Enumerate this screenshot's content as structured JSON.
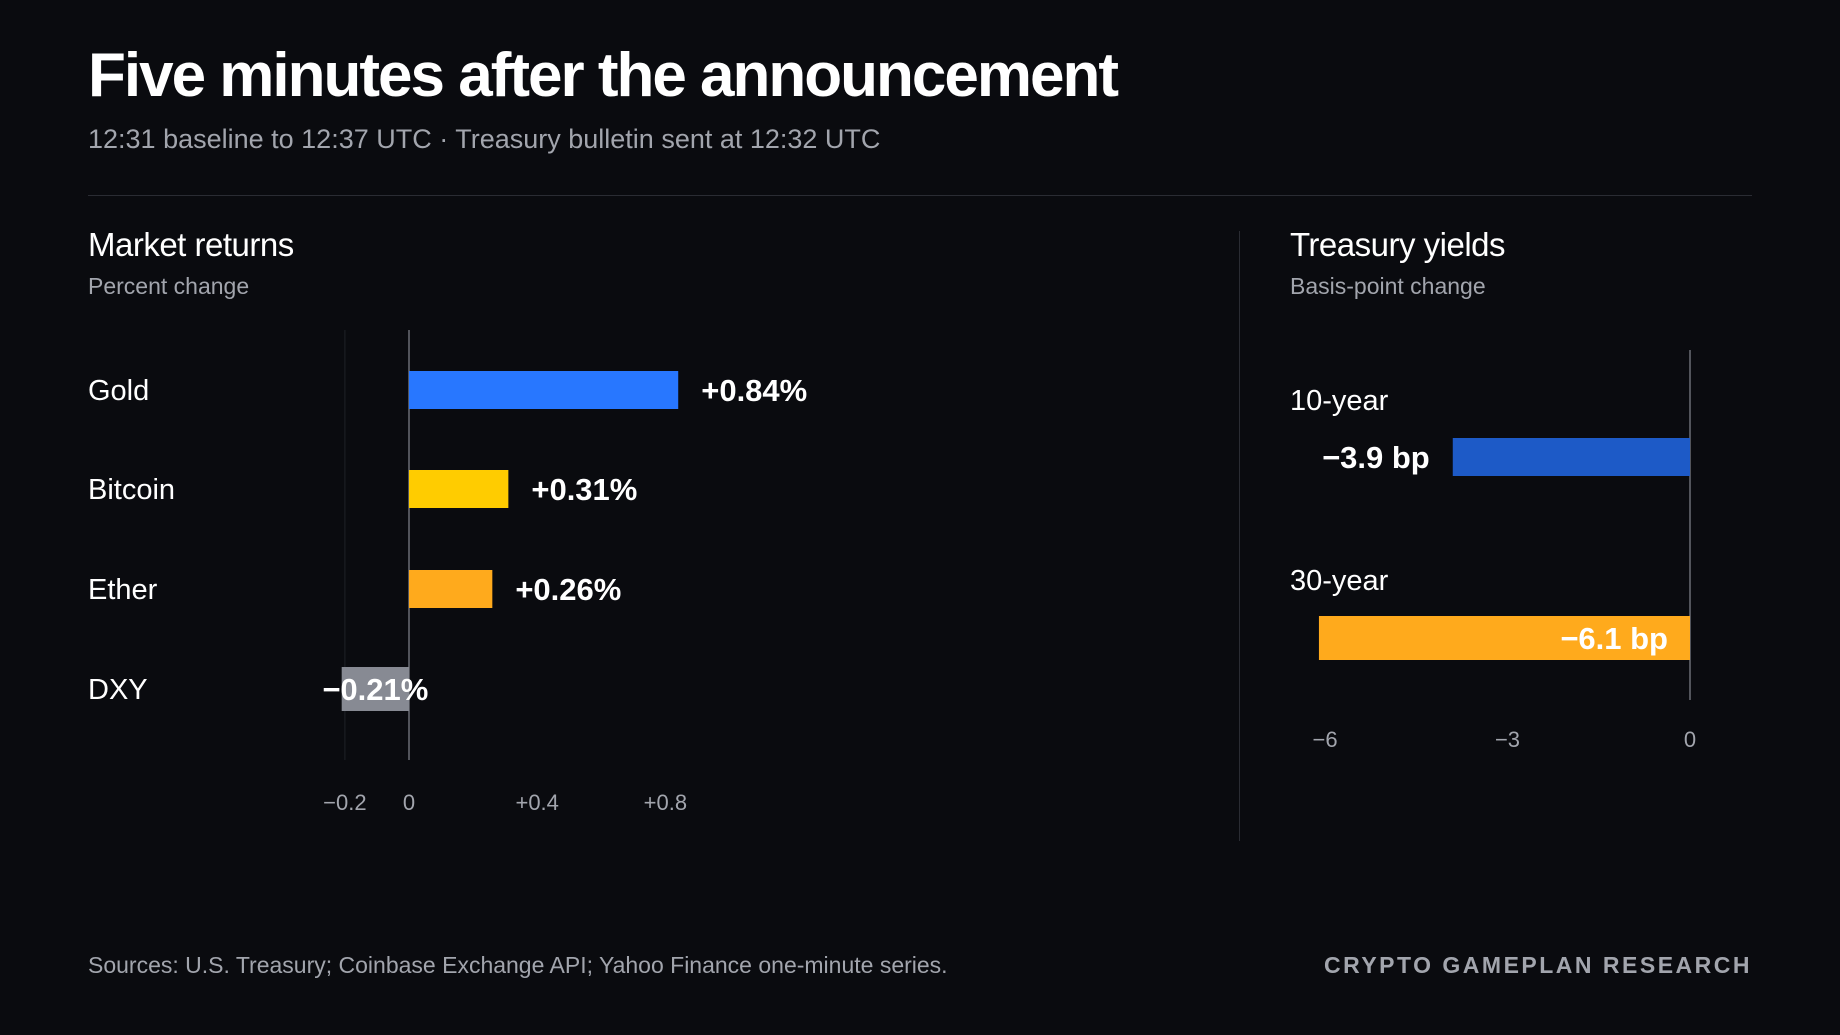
{
  "header": {
    "title": "Five minutes after the announcement",
    "subtitle": "12:31 baseline to 12:37 UTC · Treasury bulletin sent at 12:32 UTC"
  },
  "chart_data": [
    {
      "type": "bar",
      "orientation": "horizontal",
      "title": "Market returns",
      "subtitle": "Percent change",
      "categories": [
        "Gold",
        "Bitcoin",
        "Ether",
        "DXY"
      ],
      "values": [
        0.84,
        0.31,
        0.26,
        -0.21
      ],
      "value_labels": [
        "+0.84%",
        "+0.31%",
        "+0.26%",
        "−0.21%"
      ],
      "colors": [
        "#2877ff",
        "#ffcc00",
        "#ffaa1c",
        "#878a93"
      ],
      "xlim": [
        -0.2,
        0.95
      ],
      "ticks": [
        -0.2,
        0,
        0.4,
        0.8
      ],
      "tick_labels": [
        "−0.2",
        "0",
        "+0.4",
        "+0.8"
      ],
      "grid": false
    },
    {
      "type": "bar",
      "orientation": "horizontal",
      "title": "Treasury yields",
      "subtitle": "Basis-point change",
      "categories": [
        "10-year",
        "30-year"
      ],
      "values": [
        -3.9,
        -6.1
      ],
      "value_labels": [
        "−3.9 bp",
        "−6.1 bp"
      ],
      "colors": [
        "#1d5ac7",
        "#ffaa1c"
      ],
      "xlim": [
        -6.1,
        0
      ],
      "ticks": [
        -6,
        -3,
        0
      ],
      "tick_labels": [
        "−6",
        "−3",
        "0"
      ],
      "grid": false
    }
  ],
  "footer": {
    "sources": "Sources: U.S. Treasury; Coinbase Exchange API; Yahoo Finance one-minute series.",
    "brand": "CRYPTO GAMEPLAN RESEARCH"
  }
}
